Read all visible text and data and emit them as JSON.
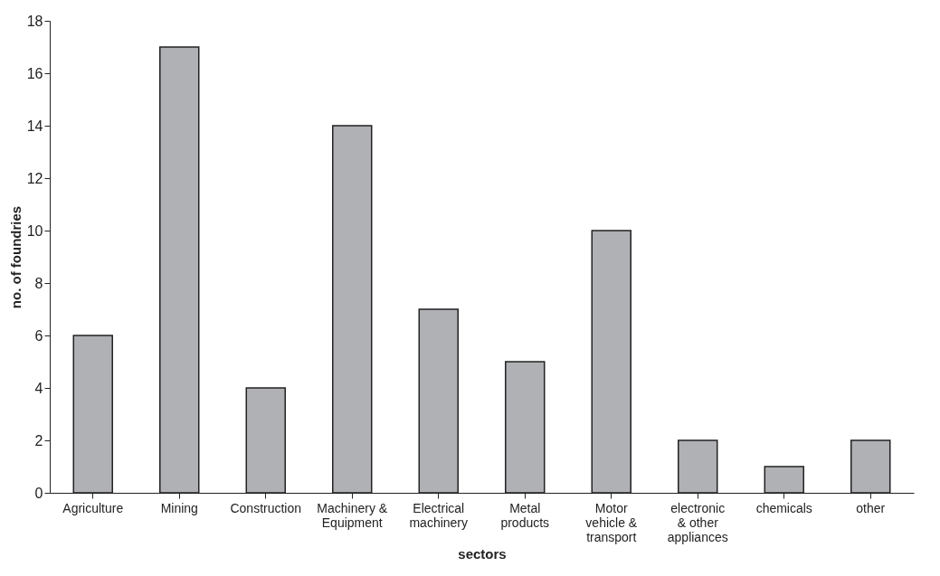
{
  "chart_data": {
    "type": "bar",
    "xlabel": "sectors",
    "ylabel": "no. of foundries",
    "categories": [
      "Agriculture",
      "Mining",
      "Construction",
      "Machinery & Equipment",
      "Electrical machinery",
      "Metal products",
      "Motor vehicle & transport",
      "electronic & other appliances",
      "chemicals",
      "other"
    ],
    "values": [
      6,
      17,
      4,
      14,
      7,
      5,
      10,
      2,
      1,
      2
    ],
    "color": "#b0b1b5",
    "ylim": [
      0,
      18
    ],
    "yticks": [
      0,
      2,
      4,
      6,
      8,
      10,
      12,
      14,
      16,
      18
    ],
    "grid": false
  }
}
